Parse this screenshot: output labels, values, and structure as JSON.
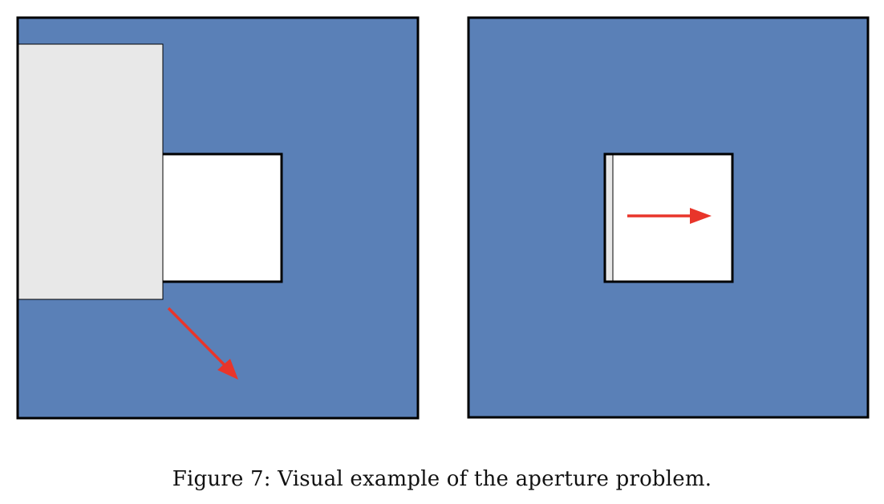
{
  "colors": {
    "panel_fill": "#5a80b7",
    "occluder_fill": "#e8e8e8",
    "aperture_fill": "#ffffff",
    "outline": "#000000",
    "arrow": "#e8352a"
  },
  "caption": "Figure 7: Visual example of the aperture problem."
}
